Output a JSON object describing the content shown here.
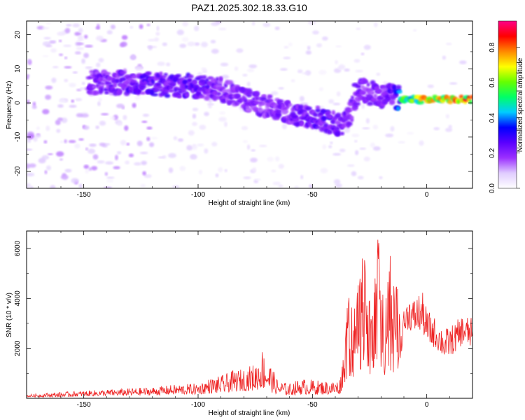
{
  "figure_title": "PAZ1.2025.302.18.33.G10",
  "chart_data": [
    {
      "type": "heatmap",
      "title": "PAZ1.2025.302.18.33.G10",
      "xlabel": "Height of straight line (km)",
      "ylabel": "Frequency (Hz)",
      "xlim": [
        -175,
        20
      ],
      "ylim": [
        -25,
        24
      ],
      "xticks": [
        -150,
        -100,
        -50,
        0
      ],
      "yticks": [
        -20,
        -10,
        0,
        10,
        20
      ],
      "xtick_labels": [
        "-150",
        "-100",
        "-50",
        "0"
      ],
      "ytick_labels": [
        "-20",
        "-10",
        "0",
        "10",
        "20"
      ],
      "colorbar": {
        "label": "Normalized spectral amplitude",
        "range": [
          0,
          0.95
        ],
        "ticks": [
          0.0,
          0.2,
          0.4,
          0.6,
          0.8
        ],
        "tick_labels": [
          "0.0",
          "0.2",
          "0.4",
          "0.6",
          "0.8"
        ],
        "colormap": [
          "#ffffff",
          "#e0ccff",
          "#9b30ff",
          "#5a00ff",
          "#0000ff",
          "#00ccff",
          "#00ff66",
          "#66ff00",
          "#ffff00",
          "#ff8800",
          "#ff0000",
          "#ff0088"
        ]
      },
      "ridge": {
        "x_km": [
          -145,
          -125,
          -110,
          -100,
          -90,
          -80,
          -70,
          -60,
          -50,
          -40,
          -35,
          -30,
          -25,
          -20,
          -15,
          -10,
          0,
          20
        ],
        "freq_hz": [
          6,
          6,
          5,
          5,
          4,
          1,
          -1,
          -3,
          -4,
          -6,
          -6,
          4,
          3,
          2,
          2,
          1,
          1,
          1
        ],
        "peak_amplitude": [
          0.25,
          0.3,
          0.3,
          0.3,
          0.25,
          0.25,
          0.25,
          0.25,
          0.3,
          0.3,
          0.25,
          0.25,
          0.25,
          0.25,
          0.3,
          0.6,
          0.85,
          0.9
        ]
      }
    },
    {
      "type": "line",
      "title": "",
      "xlabel": "Height of straight line (km)",
      "ylabel": "SNR (10 * v/v)",
      "xlim": [
        -175,
        20
      ],
      "ylim": [
        0,
        6700
      ],
      "xticks": [
        -150,
        -100,
        -50,
        0
      ],
      "yticks": [
        2000,
        4000,
        6000
      ],
      "xtick_labels": [
        "-150",
        "-100",
        "-50",
        "0"
      ],
      "ytick_labels": [
        "2000",
        "4000",
        "6000"
      ],
      "color": "#ee2222",
      "envelope": {
        "x_km": [
          -175,
          -160,
          -150,
          -140,
          -130,
          -120,
          -110,
          -100,
          -95,
          -90,
          -85,
          -80,
          -75,
          -72,
          -70,
          -65,
          -60,
          -55,
          -50,
          -45,
          -40,
          -38,
          -36,
          -34,
          -32,
          -30,
          -28,
          -26,
          -24,
          -22,
          -21,
          -20,
          -18,
          -16,
          -14,
          -12,
          -10,
          -8,
          -6,
          -4,
          -2,
          0,
          4,
          8,
          12,
          16,
          20
        ],
        "snr_upper": [
          150,
          250,
          300,
          350,
          400,
          450,
          550,
          600,
          800,
          900,
          1100,
          1200,
          1400,
          2000,
          1700,
          700,
          600,
          800,
          750,
          700,
          700,
          800,
          2300,
          4500,
          3500,
          5000,
          6300,
          4500,
          3500,
          6300,
          6700,
          5000,
          4500,
          5800,
          5000,
          4000,
          3500,
          4200,
          4000,
          4200,
          4300,
          3600,
          3200,
          2800,
          3000,
          3400,
          3200
        ],
        "snr_lower": [
          50,
          50,
          80,
          100,
          100,
          120,
          150,
          150,
          200,
          200,
          250,
          300,
          300,
          400,
          300,
          150,
          120,
          150,
          150,
          150,
          150,
          150,
          600,
          900,
          800,
          1000,
          1200,
          900,
          800,
          1000,
          1200,
          1000,
          900,
          1100,
          1000,
          1200,
          2500,
          2800,
          2600,
          2700,
          2700,
          2200,
          2000,
          1600,
          1800,
          2200,
          2000
        ]
      }
    }
  ]
}
